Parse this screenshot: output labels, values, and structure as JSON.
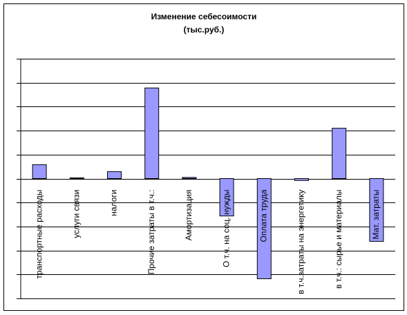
{
  "chart_data": {
    "type": "bar",
    "title": "Изменение  себесоимости",
    "subtitle": "(тыс.руб.)",
    "categories": [
      "транспортные расходы",
      "услуги связи",
      "налоги",
      "Прочие затраты в т.ч.:",
      "Амортизация",
      "О т.ч. на соц. нужды",
      "Оплата труда",
      "в т.ч.затраты на энергетику",
      "в т.ч.: сырье и материалы",
      "Мат. затраты"
    ],
    "values": [
      0.58,
      0.03,
      0.29,
      3.78,
      0.05,
      -1.56,
      -4.18,
      -0.08,
      2.1,
      -2.62
    ],
    "color": "#9999ff",
    "ylim": [
      -5,
      5
    ],
    "yticks": [
      -5,
      -4,
      -3,
      -2,
      -1,
      0,
      1,
      2,
      3,
      4,
      5
    ],
    "grid": true
  }
}
